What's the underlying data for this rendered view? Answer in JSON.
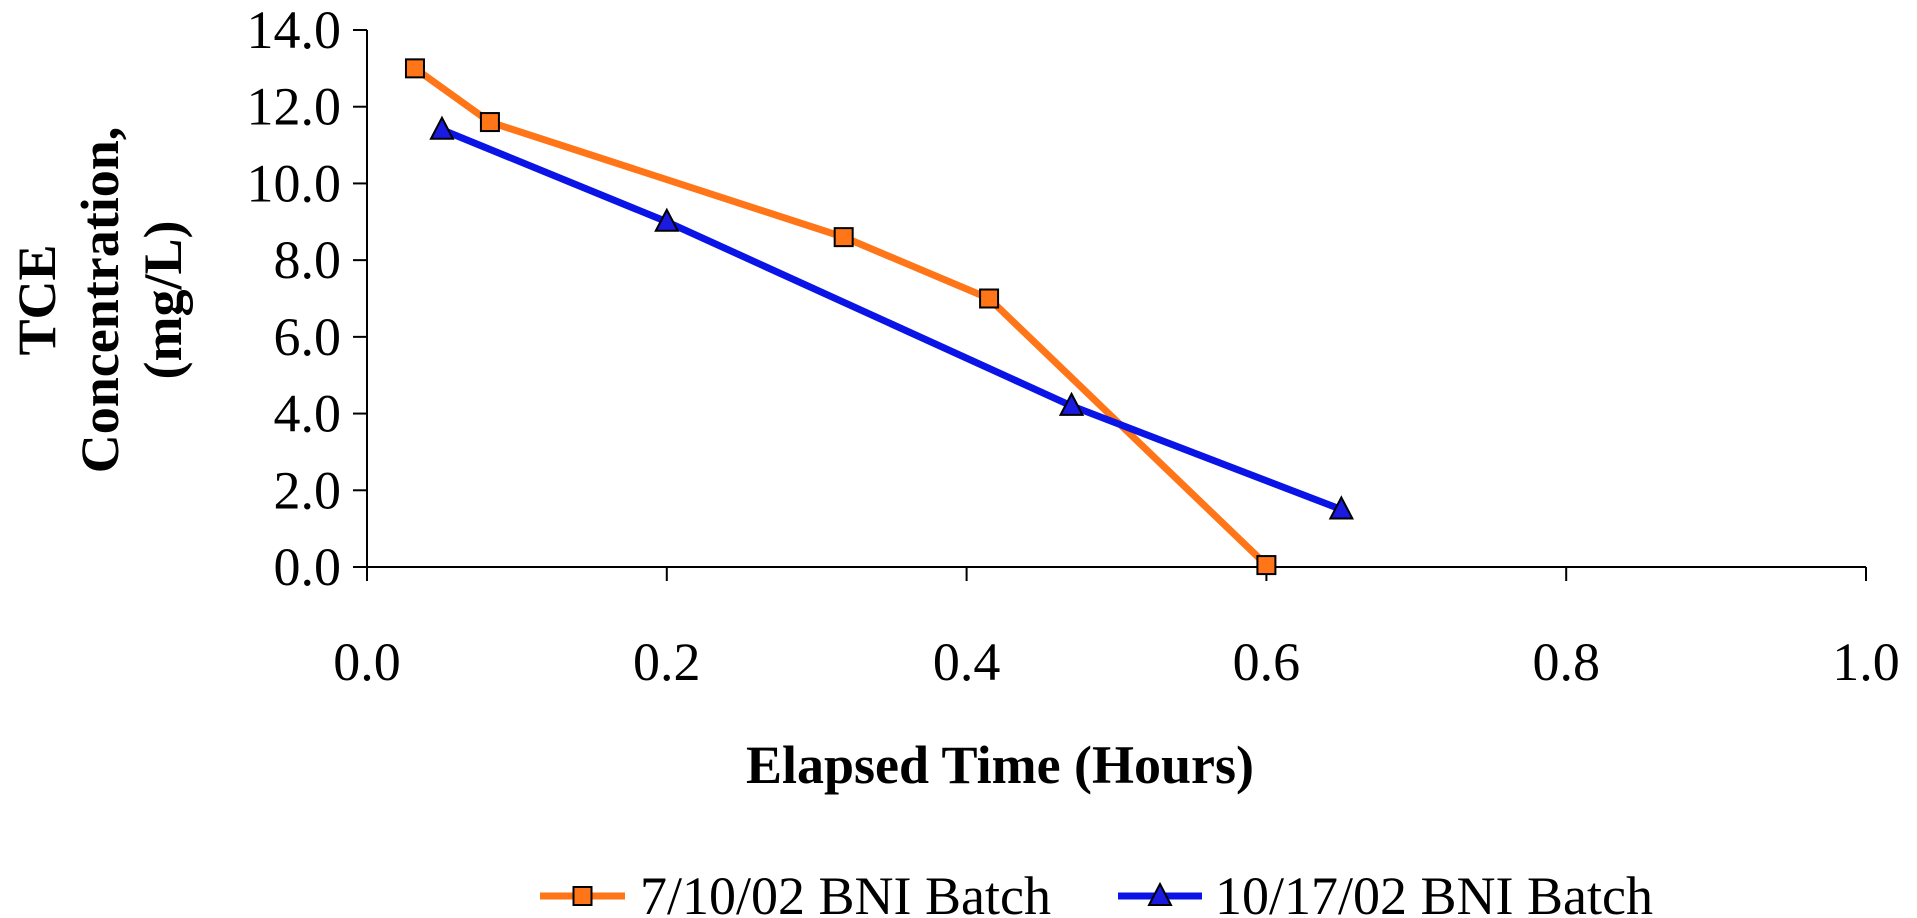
{
  "chart_data": {
    "type": "line",
    "title": "",
    "xlabel": "Elapsed Time (Hours)",
    "ylabel_lines": [
      "TCE",
      "Concentration,",
      "(mg/L)"
    ],
    "xlim": [
      0,
      1.0
    ],
    "ylim": [
      0,
      14.0
    ],
    "x_ticks": [
      "0.0",
      "0.2",
      "0.4",
      "0.6",
      "0.8",
      "1.0"
    ],
    "y_ticks": [
      "0.0",
      "2.0",
      "4.0",
      "6.0",
      "8.0",
      "10.0",
      "12.0",
      "14.0"
    ],
    "grid": false,
    "legend_position": "bottom",
    "series": [
      {
        "name": "7/10/02 BNI Batch",
        "color": "#ff7518",
        "marker": "square",
        "marker_color": "#ff7518",
        "x": [
          0.032,
          0.082,
          0.318,
          0.415,
          0.6
        ],
        "y": [
          13.0,
          11.6,
          8.6,
          7.0,
          0.05
        ]
      },
      {
        "name": "10/17/02 BNI Batch",
        "color": "#0a14e6",
        "marker": "triangle",
        "marker_color": "#1a1ae0",
        "x": [
          0.05,
          0.2,
          0.47,
          0.65
        ],
        "y": [
          11.4,
          9.0,
          4.2,
          1.5
        ]
      }
    ]
  }
}
